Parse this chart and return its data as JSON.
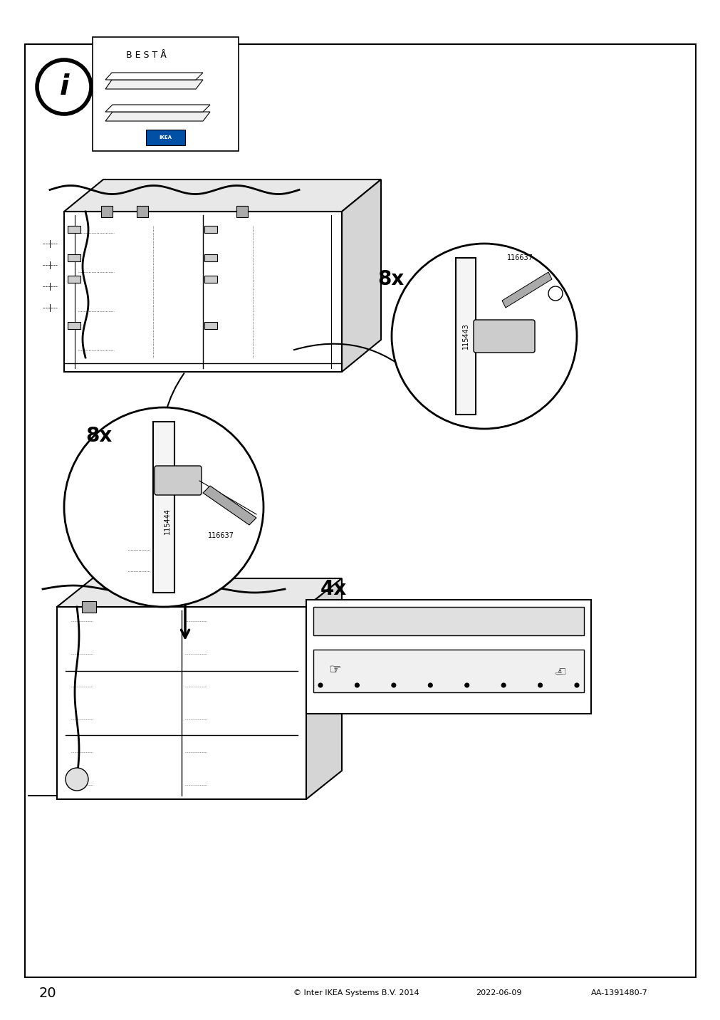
{
  "page_number": "20",
  "footer_text": "© Inter IKEA Systems B.V. 2014",
  "footer_date": "2022-06-09",
  "footer_code": "AA-1391480-7",
  "bg_color": "#ffffff",
  "border_color": "#000000",
  "line_color": "#000000",
  "text_color": "#000000",
  "light_gray": "#cccccc",
  "mid_gray": "#888888",
  "dark_gray": "#555555",
  "part_label_1": "115444",
  "part_label_2": "116637",
  "part_label_3": "115443",
  "count_1": "8x",
  "count_2": "8x",
  "count_3": "4x",
  "besta_title": "B E S T Å"
}
